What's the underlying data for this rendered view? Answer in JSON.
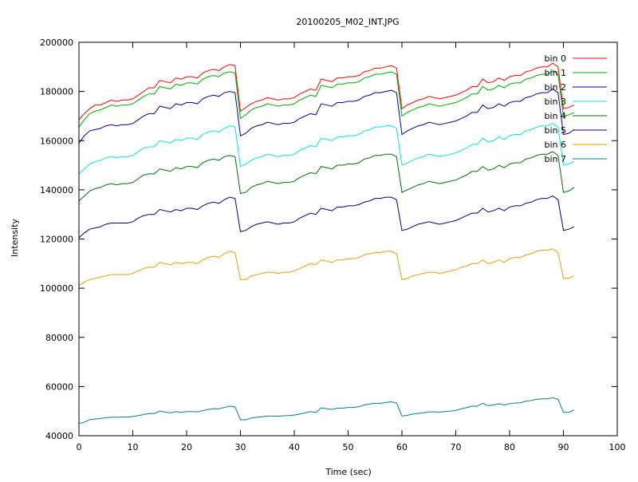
{
  "chart_data": {
    "type": "line",
    "title": "20100205_M02_INT.JPG",
    "xlabel": "Time (sec)",
    "ylabel": "Intensity",
    "xlim": [
      0,
      100
    ],
    "ylim": [
      40000,
      200000
    ],
    "xticks": [
      0,
      10,
      20,
      30,
      40,
      50,
      60,
      70,
      80,
      90,
      100
    ],
    "yticks": [
      40000,
      60000,
      80000,
      100000,
      120000,
      140000,
      160000,
      180000,
      200000
    ],
    "legend_position": "top-right",
    "grid": false,
    "x": [
      0,
      1,
      2,
      3,
      4,
      5,
      6,
      7,
      8,
      9,
      10,
      11,
      12,
      13,
      14,
      15,
      16,
      17,
      18,
      19,
      20,
      21,
      22,
      23,
      24,
      25,
      26,
      27,
      28,
      29,
      30,
      31,
      32,
      33,
      34,
      35,
      36,
      37,
      38,
      39,
      40,
      41,
      42,
      43,
      44,
      45,
      46,
      47,
      48,
      49,
      50,
      51,
      52,
      53,
      54,
      55,
      56,
      57,
      58,
      59,
      60,
      61,
      62,
      63,
      64,
      65,
      66,
      67,
      68,
      69,
      70,
      71,
      72,
      73,
      74,
      75,
      76,
      77,
      78,
      79,
      80,
      81,
      82,
      83,
      84,
      85,
      86,
      87,
      88,
      89,
      90,
      91,
      92
    ],
    "series": [
      {
        "name": "bin 0",
        "color": "#ff0000",
        "values": [
          168500,
          171000,
          173000,
          174500,
          174500,
          175500,
          176500,
          176000,
          176500,
          176500,
          177000,
          178500,
          180000,
          181500,
          181500,
          184500,
          184000,
          183500,
          185500,
          185000,
          186000,
          186000,
          185500,
          187500,
          188500,
          189000,
          188500,
          190000,
          191000,
          190500,
          172000,
          173500,
          175000,
          176000,
          176500,
          177500,
          177000,
          176500,
          177000,
          177000,
          177500,
          179000,
          180000,
          181000,
          180500,
          185000,
          184500,
          184000,
          185500,
          185500,
          186000,
          186000,
          186500,
          188000,
          188500,
          189500,
          189500,
          190000,
          190500,
          189500,
          173000,
          174500,
          175500,
          176500,
          177000,
          178000,
          177500,
          177000,
          177500,
          178000,
          178500,
          179500,
          180500,
          182000,
          182000,
          185000,
          183500,
          184000,
          185500,
          184500,
          186000,
          186500,
          186500,
          188000,
          188500,
          189500,
          190000,
          190000,
          191500,
          190000,
          173000,
          173500,
          174500
        ]
      },
      {
        "name": "bin 1",
        "color": "#00aa00",
        "values": [
          165500,
          168500,
          171000,
          172000,
          172500,
          173500,
          174500,
          174000,
          174500,
          174500,
          175000,
          176500,
          178000,
          179000,
          179000,
          182000,
          181500,
          181000,
          183000,
          182500,
          183500,
          183500,
          183000,
          185000,
          186000,
          186500,
          186000,
          187500,
          188000,
          187500,
          169000,
          170500,
          172500,
          173500,
          174000,
          175000,
          174500,
          174000,
          174500,
          174500,
          175000,
          176500,
          177500,
          178500,
          178000,
          182500,
          182000,
          181500,
          183000,
          183000,
          183500,
          183500,
          184000,
          185500,
          186000,
          187000,
          187000,
          187500,
          188000,
          187000,
          170000,
          171500,
          172500,
          173500,
          174000,
          175000,
          174500,
          174000,
          174500,
          175000,
          175500,
          176500,
          177500,
          179000,
          179000,
          182000,
          180500,
          181000,
          182500,
          181500,
          183000,
          183500,
          183500,
          185000,
          185500,
          186500,
          187000,
          187000,
          188500,
          187000,
          170000,
          170500,
          171500
        ]
      },
      {
        "name": "bin 2",
        "color": "#0000a0",
        "values": [
          159000,
          162000,
          164000,
          164500,
          165000,
          166000,
          166500,
          166000,
          166500,
          166500,
          167000,
          168500,
          170000,
          171000,
          171000,
          174000,
          173500,
          173000,
          175000,
          174500,
          175500,
          175500,
          175000,
          177000,
          178000,
          178500,
          178000,
          179500,
          180000,
          179500,
          162000,
          163000,
          165000,
          166000,
          166500,
          167500,
          167000,
          166500,
          167000,
          167000,
          167500,
          169000,
          170000,
          171000,
          170500,
          175000,
          174500,
          174000,
          175500,
          175500,
          176000,
          176000,
          176500,
          178000,
          178500,
          179500,
          179500,
          180000,
          180500,
          179500,
          162500,
          164000,
          165000,
          166000,
          166500,
          167500,
          167000,
          166500,
          167000,
          167500,
          168000,
          169000,
          170000,
          171500,
          171500,
          174500,
          173000,
          173500,
          175000,
          174000,
          175500,
          176000,
          176000,
          177500,
          178000,
          179000,
          179500,
          179500,
          181000,
          179500,
          162500,
          163000,
          164500
        ]
      },
      {
        "name": "bin 3",
        "color": "#00e5e5",
        "values": [
          146500,
          148500,
          150500,
          151500,
          152000,
          153000,
          153500,
          153000,
          153500,
          153500,
          154000,
          155500,
          157000,
          157500,
          157500,
          160000,
          159500,
          159000,
          160500,
          160000,
          161000,
          161000,
          160500,
          162500,
          163500,
          164000,
          163500,
          165000,
          166000,
          165500,
          149500,
          150500,
          152000,
          153000,
          153500,
          154500,
          154000,
          153500,
          154000,
          154000,
          154500,
          156000,
          157000,
          158000,
          157500,
          161000,
          160500,
          160000,
          161500,
          161500,
          162000,
          162000,
          162500,
          164000,
          164500,
          165500,
          165500,
          166000,
          166000,
          165000,
          150000,
          151000,
          152000,
          153000,
          153500,
          154500,
          154000,
          153500,
          154000,
          154500,
          155000,
          156000,
          157000,
          158500,
          158500,
          161000,
          159500,
          160000,
          161500,
          160500,
          162000,
          162500,
          162500,
          164000,
          164500,
          165500,
          166000,
          166000,
          167000,
          165500,
          150000,
          150500,
          151500
        ]
      },
      {
        "name": "bin 4",
        "color": "#007000",
        "values": [
          135500,
          137500,
          139500,
          140500,
          141000,
          142000,
          142500,
          142000,
          142500,
          142500,
          143000,
          144500,
          146000,
          146500,
          146500,
          148500,
          148000,
          147500,
          149000,
          148500,
          149500,
          149500,
          149000,
          151000,
          152000,
          152500,
          152000,
          153500,
          154000,
          153500,
          138500,
          139000,
          141000,
          142000,
          142500,
          143500,
          143000,
          142500,
          143000,
          143000,
          143500,
          145000,
          146000,
          147000,
          146500,
          149500,
          149000,
          148500,
          150000,
          150000,
          150500,
          150500,
          151000,
          152500,
          153000,
          154000,
          154000,
          154500,
          154500,
          153500,
          139000,
          140000,
          141000,
          142000,
          142500,
          143500,
          143000,
          142500,
          143000,
          143500,
          144000,
          145000,
          146000,
          147500,
          147500,
          149500,
          148000,
          148500,
          150000,
          149000,
          150500,
          151000,
          151000,
          152500,
          153000,
          154000,
          154500,
          154500,
          155500,
          154000,
          139000,
          139500,
          141000
        ]
      },
      {
        "name": "bin 5",
        "color": "#000080",
        "values": [
          120500,
          122500,
          124000,
          124500,
          125000,
          126000,
          126500,
          126500,
          126500,
          126500,
          127000,
          128500,
          129500,
          130000,
          130000,
          132000,
          131500,
          131000,
          132000,
          131500,
          132500,
          132500,
          132000,
          133500,
          134500,
          135000,
          134500,
          136000,
          137000,
          136500,
          123000,
          123500,
          125000,
          126000,
          126500,
          127000,
          126500,
          126000,
          126500,
          126500,
          127000,
          128500,
          129500,
          130500,
          130000,
          132500,
          132000,
          131500,
          133000,
          133000,
          133500,
          133500,
          134000,
          135000,
          135500,
          136500,
          136500,
          137000,
          137000,
          136000,
          123500,
          124000,
          125000,
          126000,
          126500,
          127000,
          126500,
          126000,
          126500,
          127000,
          127500,
          128500,
          129500,
          130500,
          130500,
          132500,
          131000,
          131500,
          132500,
          131500,
          133000,
          133500,
          133500,
          134500,
          135000,
          136000,
          136500,
          136500,
          137500,
          136000,
          123500,
          124000,
          125000
        ]
      },
      {
        "name": "bin 6",
        "color": "#e5a000",
        "values": [
          101000,
          102500,
          103500,
          104000,
          104500,
          105000,
          105500,
          105500,
          105500,
          105500,
          106000,
          107000,
          108000,
          108500,
          108500,
          110500,
          110000,
          109500,
          110500,
          110000,
          110500,
          110500,
          110000,
          111500,
          112500,
          113000,
          112500,
          114000,
          115000,
          114500,
          103500,
          103500,
          105000,
          105500,
          106000,
          106500,
          106500,
          106000,
          106500,
          106500,
          107000,
          108000,
          109000,
          110000,
          109500,
          111500,
          111000,
          110500,
          111500,
          111500,
          112000,
          112000,
          112500,
          113500,
          114000,
          114500,
          114500,
          115000,
          115000,
          114000,
          103500,
          104000,
          105000,
          105500,
          106000,
          106500,
          106500,
          106000,
          106500,
          107000,
          107500,
          108500,
          109000,
          110000,
          110000,
          111500,
          110000,
          110500,
          111500,
          110500,
          112000,
          112500,
          112500,
          113500,
          114000,
          115000,
          115500,
          115500,
          116000,
          114500,
          104000,
          104000,
          105000
        ]
      },
      {
        "name": "bin 7",
        "color": "#008080",
        "values": [
          45000,
          45500,
          46500,
          46800,
          47000,
          47300,
          47500,
          47500,
          47600,
          47600,
          47800,
          48200,
          48600,
          49000,
          49000,
          50000,
          49600,
          49300,
          49800,
          49500,
          49800,
          49800,
          49700,
          50200,
          50700,
          51000,
          50900,
          51500,
          52000,
          51700,
          46500,
          46500,
          47200,
          47500,
          47700,
          48000,
          48000,
          47900,
          48100,
          48200,
          48400,
          48800,
          49300,
          49800,
          49500,
          51300,
          51000,
          50700,
          51200,
          51200,
          51500,
          51500,
          51800,
          52500,
          52900,
          53200,
          53200,
          53500,
          53800,
          53300,
          48000,
          48300,
          48800,
          49100,
          49300,
          49700,
          49700,
          49600,
          49800,
          50000,
          50300,
          50900,
          51400,
          52000,
          52000,
          53200,
          52200,
          52500,
          53000,
          52500,
          53000,
          53300,
          53400,
          54000,
          54300,
          54800,
          55000,
          55000,
          55400,
          54800,
          49500,
          49500,
          50500
        ]
      }
    ]
  }
}
